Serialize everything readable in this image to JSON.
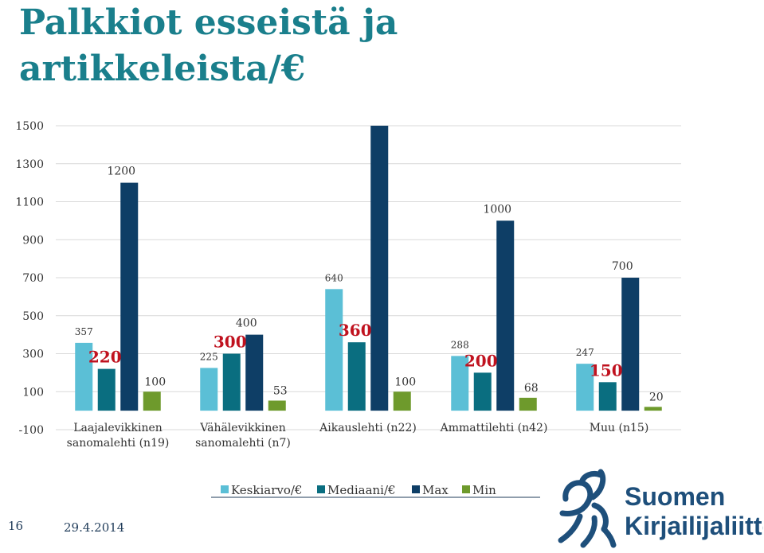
{
  "slide": {
    "title": "Palkkiot esseistä ja artikkeleista/€",
    "page_number": "16",
    "date": "29.4.2014"
  },
  "logo": {
    "line1": "Suomen",
    "line2": "Kirjailijaliitto",
    "icon": "pegasus-icon"
  },
  "colors": {
    "mean": "#5bbfd6",
    "median": "#0a6e80",
    "max": "#0e3e66",
    "min": "#6e9a2c",
    "big_label": "#c0121f",
    "axis_text": "#333333",
    "grid": "#d9d9d9",
    "logo": "#1e4f7b"
  },
  "chart_data": {
    "type": "bar",
    "categories": [
      "Laajalevikkinen sanomalehti (n19)",
      "Vähälevikkinen sanomalehti (n7)",
      "Aikauslehti (n22)",
      "Ammattilehti (n42)",
      "Muu (n15)"
    ],
    "category_lines": [
      [
        "Laajalevikkinen",
        "sanomalehti (n19)"
      ],
      [
        "Vähälevikkinen",
        "sanomalehti (n7)"
      ],
      [
        "Aikauslehti (n22)"
      ],
      [
        "Ammattilehti (n42)"
      ],
      [
        "Muu (n15)"
      ]
    ],
    "series": [
      {
        "name": "Keskiarvo/€",
        "values": [
          357,
          225,
          640,
          288,
          247
        ],
        "labels": [
          "357",
          "225",
          "640",
          "288",
          "247"
        ]
      },
      {
        "name": "Mediaani/€",
        "values": [
          220,
          300,
          360,
          200,
          150
        ],
        "labels": [
          "220",
          "300",
          "360",
          "200",
          "150"
        ]
      },
      {
        "name": "Max",
        "values": [
          1200,
          400,
          1500,
          1000,
          700
        ],
        "labels": [
          "1200",
          "400",
          "",
          "1000",
          "700"
        ]
      },
      {
        "name": "Min",
        "values": [
          100,
          53,
          100,
          68,
          20
        ],
        "labels": [
          "100",
          "53",
          "100",
          "68",
          "20"
        ]
      }
    ],
    "yticks": [
      "1500",
      "1300",
      "1100",
      "900",
      "700",
      "500",
      "300",
      "100",
      "-100"
    ],
    "ylim": [
      -100,
      1500
    ],
    "grid": true,
    "legend": "bottom"
  }
}
